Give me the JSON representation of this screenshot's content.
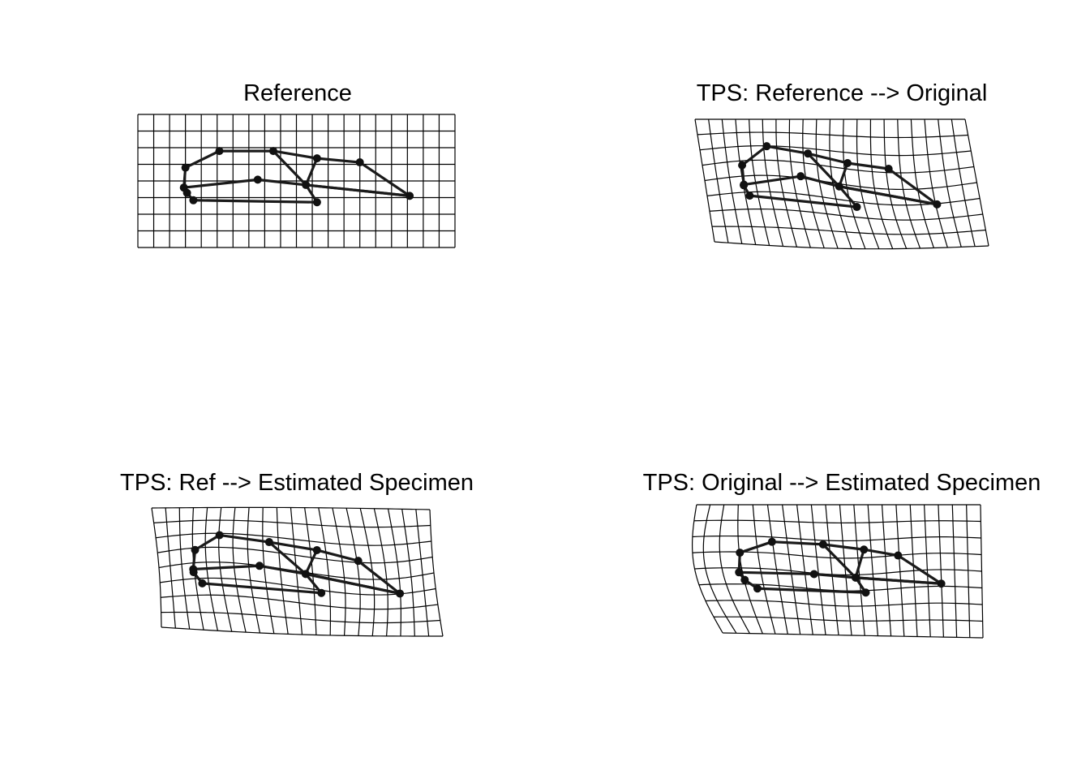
{
  "figure": {
    "panels": [
      {
        "title": "Reference"
      },
      {
        "title": "TPS: Reference --> Original"
      },
      {
        "title": "TPS: Ref --> Estimated Specimen"
      },
      {
        "title": "TPS: Original --> Estimated Specimen"
      }
    ],
    "grid": {
      "columns": 19,
      "rows": 8
    },
    "colors": {
      "grid": "#000000",
      "links": "#1a1a1a",
      "landmarks": "#111111",
      "background": "#ffffff"
    }
  }
}
